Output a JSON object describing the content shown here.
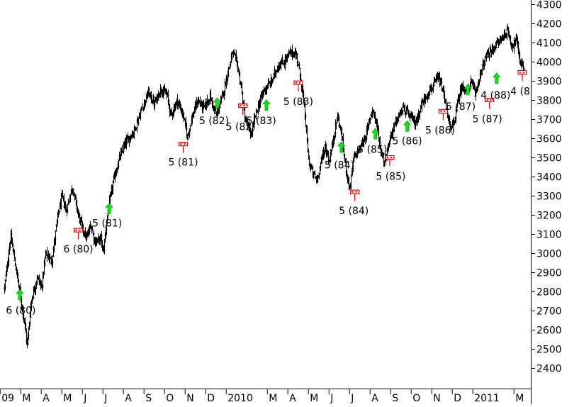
{
  "chart_data": {
    "type": "ohlc",
    "title": "",
    "xlabel": "",
    "ylabel": "",
    "ylim": [
      2300,
      4300
    ],
    "yticks": [
      4300,
      4200,
      4100,
      4000,
      3900,
      3800,
      3700,
      3600,
      3500,
      3400,
      3300,
      3200,
      3100,
      3000,
      2900,
      2800,
      2700,
      2600,
      2500,
      2400
    ],
    "ytick_labels": [
      "4300",
      "4200",
      "4100",
      "4000",
      "3900",
      "3800",
      "3700",
      "3600",
      "3500",
      "3400",
      "3300",
      "3200",
      "3100",
      "3000",
      "2900",
      "2800",
      "2700",
      "2600",
      "2500",
      "2400"
    ],
    "xtick_labels": [
      "09",
      "M",
      "A",
      "M",
      "J",
      "J",
      "A",
      "S",
      "O",
      "N",
      "D",
      "2010",
      "M",
      "A",
      "M",
      "J",
      "J",
      "A",
      "S",
      "O",
      "N",
      "D",
      "2011",
      "M"
    ],
    "xtick_month_index": [
      1,
      2,
      3,
      4,
      5,
      6,
      7,
      8,
      9,
      10,
      11,
      12,
      14,
      15,
      16,
      17,
      18,
      19,
      20,
      21,
      22,
      23,
      24,
      26
    ],
    "x_range_months": [
      1.0,
      26.3
    ],
    "grid": false,
    "series_anchors": [
      {
        "m": 1.0,
        "v": 2820
      },
      {
        "m": 1.3,
        "v": 3090
      },
      {
        "m": 1.5,
        "v": 2960
      },
      {
        "m": 1.8,
        "v": 2760
      },
      {
        "m": 2.0,
        "v": 2620
      },
      {
        "m": 2.1,
        "v": 2520
      },
      {
        "m": 2.3,
        "v": 2750
      },
      {
        "m": 2.6,
        "v": 2880
      },
      {
        "m": 2.8,
        "v": 2820
      },
      {
        "m": 3.0,
        "v": 3000
      },
      {
        "m": 3.3,
        "v": 2960
      },
      {
        "m": 3.6,
        "v": 3200
      },
      {
        "m": 3.8,
        "v": 3300
      },
      {
        "m": 4.0,
        "v": 3220
      },
      {
        "m": 4.3,
        "v": 3350
      },
      {
        "m": 4.6,
        "v": 3200
      },
      {
        "m": 4.8,
        "v": 3130
      },
      {
        "m": 5.0,
        "v": 3080
      },
      {
        "m": 5.2,
        "v": 3150
      },
      {
        "m": 5.4,
        "v": 3060
      },
      {
        "m": 5.7,
        "v": 3080
      },
      {
        "m": 5.8,
        "v": 3000
      },
      {
        "m": 6.0,
        "v": 3200
      },
      {
        "m": 6.3,
        "v": 3380
      },
      {
        "m": 6.6,
        "v": 3500
      },
      {
        "m": 6.9,
        "v": 3580
      },
      {
        "m": 7.3,
        "v": 3640
      },
      {
        "m": 7.7,
        "v": 3760
      },
      {
        "m": 8.0,
        "v": 3840
      },
      {
        "m": 8.3,
        "v": 3780
      },
      {
        "m": 8.6,
        "v": 3860
      },
      {
        "m": 8.9,
        "v": 3830
      },
      {
        "m": 9.1,
        "v": 3720
      },
      {
        "m": 9.4,
        "v": 3800
      },
      {
        "m": 9.7,
        "v": 3720
      },
      {
        "m": 9.9,
        "v": 3610
      },
      {
        "m": 10.1,
        "v": 3700
      },
      {
        "m": 10.4,
        "v": 3800
      },
      {
        "m": 10.7,
        "v": 3760
      },
      {
        "m": 11.0,
        "v": 3820
      },
      {
        "m": 11.3,
        "v": 3720
      },
      {
        "m": 11.6,
        "v": 3820
      },
      {
        "m": 11.9,
        "v": 3960
      },
      {
        "m": 12.1,
        "v": 4050
      },
      {
        "m": 12.3,
        "v": 4000
      },
      {
        "m": 12.5,
        "v": 3880
      },
      {
        "m": 12.7,
        "v": 3700
      },
      {
        "m": 13.0,
        "v": 3620
      },
      {
        "m": 13.2,
        "v": 3720
      },
      {
        "m": 13.6,
        "v": 3850
      },
      {
        "m": 14.0,
        "v": 3900
      },
      {
        "m": 14.3,
        "v": 3980
      },
      {
        "m": 14.6,
        "v": 4000
      },
      {
        "m": 14.9,
        "v": 4050
      },
      {
        "m": 15.2,
        "v": 4040
      },
      {
        "m": 15.4,
        "v": 3920
      },
      {
        "m": 15.6,
        "v": 3750
      },
      {
        "m": 15.8,
        "v": 3480
      },
      {
        "m": 16.0,
        "v": 3420
      },
      {
        "m": 16.2,
        "v": 3380
      },
      {
        "m": 16.4,
        "v": 3480
      },
      {
        "m": 16.6,
        "v": 3560
      },
      {
        "m": 16.8,
        "v": 3480
      },
      {
        "m": 17.0,
        "v": 3600
      },
      {
        "m": 17.2,
        "v": 3720
      },
      {
        "m": 17.4,
        "v": 3620
      },
      {
        "m": 17.6,
        "v": 3450
      },
      {
        "m": 17.8,
        "v": 3340
      },
      {
        "m": 18.0,
        "v": 3500
      },
      {
        "m": 18.3,
        "v": 3550
      },
      {
        "m": 18.6,
        "v": 3620
      },
      {
        "m": 18.9,
        "v": 3760
      },
      {
        "m": 19.1,
        "v": 3680
      },
      {
        "m": 19.3,
        "v": 3540
      },
      {
        "m": 19.5,
        "v": 3480
      },
      {
        "m": 19.8,
        "v": 3620
      },
      {
        "m": 20.1,
        "v": 3700
      },
      {
        "m": 20.4,
        "v": 3760
      },
      {
        "m": 20.7,
        "v": 3720
      },
      {
        "m": 21.0,
        "v": 3680
      },
      {
        "m": 21.3,
        "v": 3780
      },
      {
        "m": 21.6,
        "v": 3840
      },
      {
        "m": 21.9,
        "v": 3880
      },
      {
        "m": 22.1,
        "v": 3920
      },
      {
        "m": 22.3,
        "v": 3860
      },
      {
        "m": 22.5,
        "v": 3760
      },
      {
        "m": 22.7,
        "v": 3640
      },
      {
        "m": 22.9,
        "v": 3700
      },
      {
        "m": 23.1,
        "v": 3820
      },
      {
        "m": 23.3,
        "v": 3880
      },
      {
        "m": 23.5,
        "v": 3840
      },
      {
        "m": 23.7,
        "v": 3900
      },
      {
        "m": 23.9,
        "v": 3830
      },
      {
        "m": 24.1,
        "v": 3920
      },
      {
        "m": 24.4,
        "v": 4020
      },
      {
        "m": 24.7,
        "v": 4060
      },
      {
        "m": 25.0,
        "v": 4100
      },
      {
        "m": 25.3,
        "v": 4140
      },
      {
        "m": 25.5,
        "v": 4160
      },
      {
        "m": 25.7,
        "v": 4080
      },
      {
        "m": 25.9,
        "v": 4120
      },
      {
        "m": 26.1,
        "v": 4000
      },
      {
        "m": 26.3,
        "v": 3960
      }
    ],
    "markers": [
      {
        "kind": "buy",
        "m": 1.75,
        "v": 2780,
        "label": "6 (80)",
        "label_m": 1.8,
        "label_v": 2700
      },
      {
        "kind": "sell",
        "m": 4.6,
        "v": 3120,
        "label": "6 (80)",
        "label_m": 4.6,
        "label_v": 3020
      },
      {
        "kind": "buy",
        "m": 6.1,
        "v": 3230,
        "label": "5 (81)",
        "label_m": 6.0,
        "label_v": 3155
      },
      {
        "kind": "sell",
        "m": 9.7,
        "v": 3570,
        "label": "5 (81)",
        "label_m": 9.7,
        "label_v": 3475
      },
      {
        "kind": "buy",
        "m": 11.35,
        "v": 3780,
        "label": "5 (82)",
        "label_m": 11.2,
        "label_v": 3690
      },
      {
        "kind": "sell",
        "m": 12.6,
        "v": 3770,
        "label": "5 (82)",
        "label_m": 12.5,
        "label_v": 3660
      },
      {
        "kind": "buy",
        "m": 13.75,
        "v": 3770,
        "label": "5 (83)",
        "label_m": 13.5,
        "label_v": 3690
      },
      {
        "kind": "sell",
        "m": 15.3,
        "v": 3890,
        "label": "5 (83)",
        "label_m": 15.3,
        "label_v": 3790
      },
      {
        "kind": "buy",
        "m": 17.4,
        "v": 3550,
        "label": "5 (84)",
        "label_m": 17.3,
        "label_v": 3460
      },
      {
        "kind": "sell",
        "m": 18.05,
        "v": 3320,
        "label": "5 (84)",
        "label_m": 18.0,
        "label_v": 3220
      },
      {
        "kind": "buy",
        "m": 19.05,
        "v": 3620,
        "label": "5 (85)",
        "label_m": 18.9,
        "label_v": 3540
      },
      {
        "kind": "sell",
        "m": 19.75,
        "v": 3500,
        "label": "5 (85)",
        "label_m": 19.8,
        "label_v": 3400
      },
      {
        "kind": "buy",
        "m": 20.6,
        "v": 3660,
        "label": "5 (86)",
        "label_m": 20.6,
        "label_v": 3585
      },
      {
        "kind": "sell",
        "m": 22.35,
        "v": 3740,
        "label": "5 (86)",
        "label_m": 22.2,
        "label_v": 3640
      },
      {
        "kind": "buy",
        "m": 23.55,
        "v": 3850,
        "label": "5 (87)",
        "label_m": 23.2,
        "label_v": 3765
      },
      {
        "kind": "sell",
        "m": 24.6,
        "v": 3800,
        "label": "5 (87)",
        "label_m": 24.5,
        "label_v": 3700
      },
      {
        "kind": "buy",
        "m": 24.95,
        "v": 3910,
        "label": "4 (88)",
        "label_m": 24.9,
        "label_v": 3825
      },
      {
        "kind": "sell",
        "m": 26.2,
        "v": 3945,
        "label": "4 (8",
        "label_m": 26.1,
        "label_v": 3845
      }
    ],
    "colors": {
      "bars": "#000000",
      "buy_arrow": "#00ee00",
      "sell_marker": "#ee0000",
      "axis": "#000000",
      "text": "#000000",
      "background": "#ffffff"
    }
  }
}
